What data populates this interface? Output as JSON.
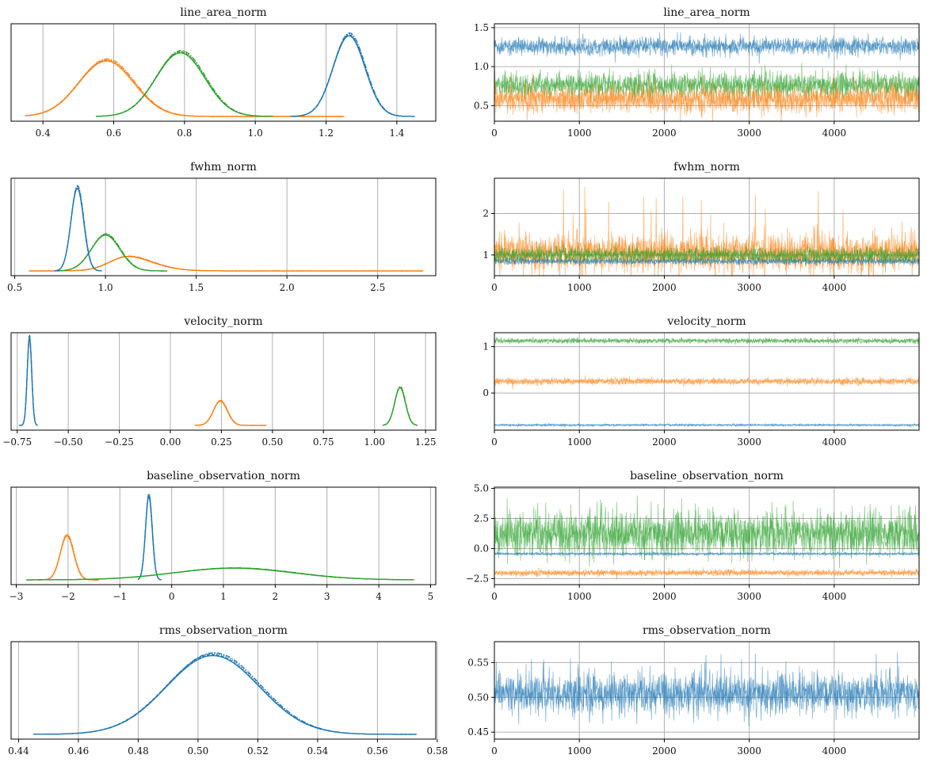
{
  "colors": {
    "chain_blue": "#1f77b4",
    "chain_orange": "#ff7f0e",
    "chain_green": "#2ca02c",
    "grid": "#b0b0b0"
  },
  "chart_data": [
    {
      "type": "line",
      "kind": "posterior-density",
      "title": "line_area_norm",
      "xlim": [
        0.31,
        1.51
      ],
      "grid": "vertical",
      "x_ticks": [
        "0.4",
        "0.6",
        "0.8",
        "1.0",
        "1.2",
        "1.4"
      ],
      "series": [
        {
          "color": "#ff7f0e",
          "mean": 0.56,
          "sd": 0.08,
          "skew": 0.3,
          "range": [
            0.35,
            1.25
          ],
          "peak": 0.62
        },
        {
          "color": "#2ca02c",
          "mean": 0.8,
          "sd": 0.07,
          "skew": -0.2,
          "range": [
            0.55,
            1.05
          ],
          "peak": 0.71
        },
        {
          "color": "#1f77b4",
          "mean": 1.265,
          "sd": 0.045,
          "skew": 0,
          "range": [
            1.1,
            1.45
          ],
          "peak": 0.9
        }
      ]
    },
    {
      "type": "line",
      "kind": "trace",
      "title": "line_area_norm",
      "xlim": [
        0,
        4999
      ],
      "ylim": [
        0.3,
        1.55
      ],
      "grid": "both",
      "x_ticks": [
        "0",
        "1000",
        "2000",
        "3000",
        "4000"
      ],
      "y_ticks": [
        "0.5",
        "1.0",
        "1.5"
      ],
      "series": [
        {
          "color": "#1f77b4",
          "center": 1.26,
          "band": 0.055,
          "spike": 0.12
        },
        {
          "color": "#2ca02c",
          "center": 0.76,
          "band": 0.08,
          "spike": 0.2
        },
        {
          "color": "#ff7f0e",
          "center": 0.58,
          "band": 0.08,
          "spike": 0.35
        }
      ]
    },
    {
      "type": "line",
      "kind": "posterior-density",
      "title": "fwhm_norm",
      "xlim": [
        0.48,
        2.82
      ],
      "grid": "vertical",
      "x_ticks": [
        "0.5",
        "1.0",
        "1.5",
        "2.0",
        "2.5"
      ],
      "series": [
        {
          "color": "#ff7f0e",
          "mean": 1.04,
          "sd": 0.17,
          "skew": 1.6,
          "range": [
            0.58,
            2.75
          ],
          "peak": 0.16
        },
        {
          "color": "#2ca02c",
          "mean": 0.97,
          "sd": 0.085,
          "skew": 0.5,
          "range": [
            0.72,
            1.34
          ],
          "peak": 0.4
        },
        {
          "color": "#1f77b4",
          "mean": 0.845,
          "sd": 0.035,
          "skew": 0,
          "range": [
            0.72,
            0.98
          ],
          "peak": 0.92
        }
      ]
    },
    {
      "type": "line",
      "kind": "trace",
      "title": "fwhm_norm",
      "xlim": [
        0,
        4999
      ],
      "ylim": [
        0.5,
        2.85
      ],
      "grid": "both",
      "x_ticks": [
        "0",
        "1000",
        "2000",
        "3000",
        "4000"
      ],
      "y_ticks": [
        "1",
        "2"
      ],
      "series": [
        {
          "color": "#ff7f0e",
          "center": 1.05,
          "band": 0.22,
          "spike": 1.6
        },
        {
          "color": "#1f77b4",
          "center": 0.85,
          "band": 0.04,
          "spike": 0.1
        },
        {
          "color": "#2ca02c",
          "center": 1.0,
          "band": 0.09,
          "spike": 0.3
        }
      ]
    },
    {
      "type": "line",
      "kind": "posterior-density",
      "title": "velocity_norm",
      "xlim": [
        -0.78,
        1.3
      ],
      "grid": "vertical",
      "x_ticks": [
        "−0.75",
        "−0.50",
        "−0.25",
        "0.00",
        "0.25",
        "0.50",
        "0.75",
        "1.00",
        "1.25"
      ],
      "series": [
        {
          "color": "#1f77b4",
          "mean": -0.69,
          "sd": 0.011,
          "skew": 0,
          "range": [
            -0.74,
            -0.65
          ],
          "peak": 0.97
        },
        {
          "color": "#ff7f0e",
          "mean": 0.245,
          "sd": 0.034,
          "skew": 0,
          "range": [
            0.12,
            0.47
          ],
          "peak": 0.27
        },
        {
          "color": "#2ca02c",
          "mean": 1.125,
          "sd": 0.026,
          "skew": 0,
          "range": [
            1.04,
            1.21
          ],
          "peak": 0.42
        }
      ]
    },
    {
      "type": "line",
      "kind": "trace",
      "title": "velocity_norm",
      "xlim": [
        0,
        4999
      ],
      "ylim": [
        -0.8,
        1.3
      ],
      "grid": "both",
      "x_ticks": [
        "0",
        "1000",
        "2000",
        "3000",
        "4000"
      ],
      "y_ticks": [
        "0",
        "1"
      ],
      "series": [
        {
          "color": "#2ca02c",
          "center": 1.125,
          "band": 0.026,
          "spike": 0.06
        },
        {
          "color": "#ff7f0e",
          "center": 0.25,
          "band": 0.035,
          "spike": 0.1
        },
        {
          "color": "#1f77b4",
          "center": -0.69,
          "band": 0.011,
          "spike": 0.02
        }
      ]
    },
    {
      "type": "line",
      "kind": "posterior-density",
      "title": "baseline_observation_norm",
      "xlim": [
        -3.1,
        5.1
      ],
      "grid": "vertical",
      "x_ticks": [
        "−3",
        "−2",
        "−1",
        "0",
        "1",
        "2",
        "3",
        "4",
        "5"
      ],
      "series": [
        {
          "color": "#ff7f0e",
          "mean": -2.02,
          "sd": 0.13,
          "skew": 0,
          "range": [
            -2.6,
            -1.4
          ],
          "peak": 0.49
        },
        {
          "color": "#1f77b4",
          "mean": -0.44,
          "sd": 0.065,
          "skew": 0,
          "range": [
            -0.65,
            -0.2
          ],
          "peak": 0.93
        },
        {
          "color": "#2ca02c",
          "mean": 1.2,
          "sd": 1.15,
          "skew": 0,
          "range": [
            -2.8,
            4.65
          ],
          "peak": 0.13
        }
      ]
    },
    {
      "type": "line",
      "kind": "trace",
      "title": "baseline_observation_norm",
      "xlim": [
        0,
        4999
      ],
      "ylim": [
        -3.0,
        5.1
      ],
      "grid": "both",
      "x_ticks": [
        "0",
        "1000",
        "2000",
        "3000",
        "4000"
      ],
      "y_ticks": [
        "−2.5",
        "0.0",
        "2.5",
        "5.0"
      ],
      "series": [
        {
          "color": "#2ca02c",
          "center": 1.2,
          "band": 0.9,
          "spike": 2.8
        },
        {
          "color": "#ff7f0e",
          "center": -2.02,
          "band": 0.12,
          "spike": 0.45
        },
        {
          "color": "#1f77b4",
          "center": -0.44,
          "band": 0.05,
          "spike": 0.15
        }
      ]
    },
    {
      "type": "line",
      "kind": "posterior-density",
      "title": "rms_observation_norm",
      "xlim": [
        0.4375,
        0.5795
      ],
      "grid": "vertical",
      "x_ticks": [
        "0.44",
        "0.46",
        "0.48",
        "0.50",
        "0.52",
        "0.54",
        "0.56",
        "0.58"
      ],
      "series": [
        {
          "color": "#1f77b4",
          "mean": 0.505,
          "sd": 0.0155,
          "skew": 0,
          "range": [
            0.445,
            0.573
          ],
          "peak": 0.88
        }
      ]
    },
    {
      "type": "line",
      "kind": "trace",
      "title": "rms_observation_norm",
      "xlim": [
        0,
        4999
      ],
      "ylim": [
        0.44,
        0.58
      ],
      "grid": "both",
      "x_ticks": [
        "0",
        "1000",
        "2000",
        "3000",
        "4000"
      ],
      "y_ticks": [
        "0.45",
        "0.50",
        "0.55"
      ],
      "series": [
        {
          "color": "#1f77b4",
          "center": 0.505,
          "band": 0.014,
          "spike": 0.06
        }
      ]
    }
  ]
}
